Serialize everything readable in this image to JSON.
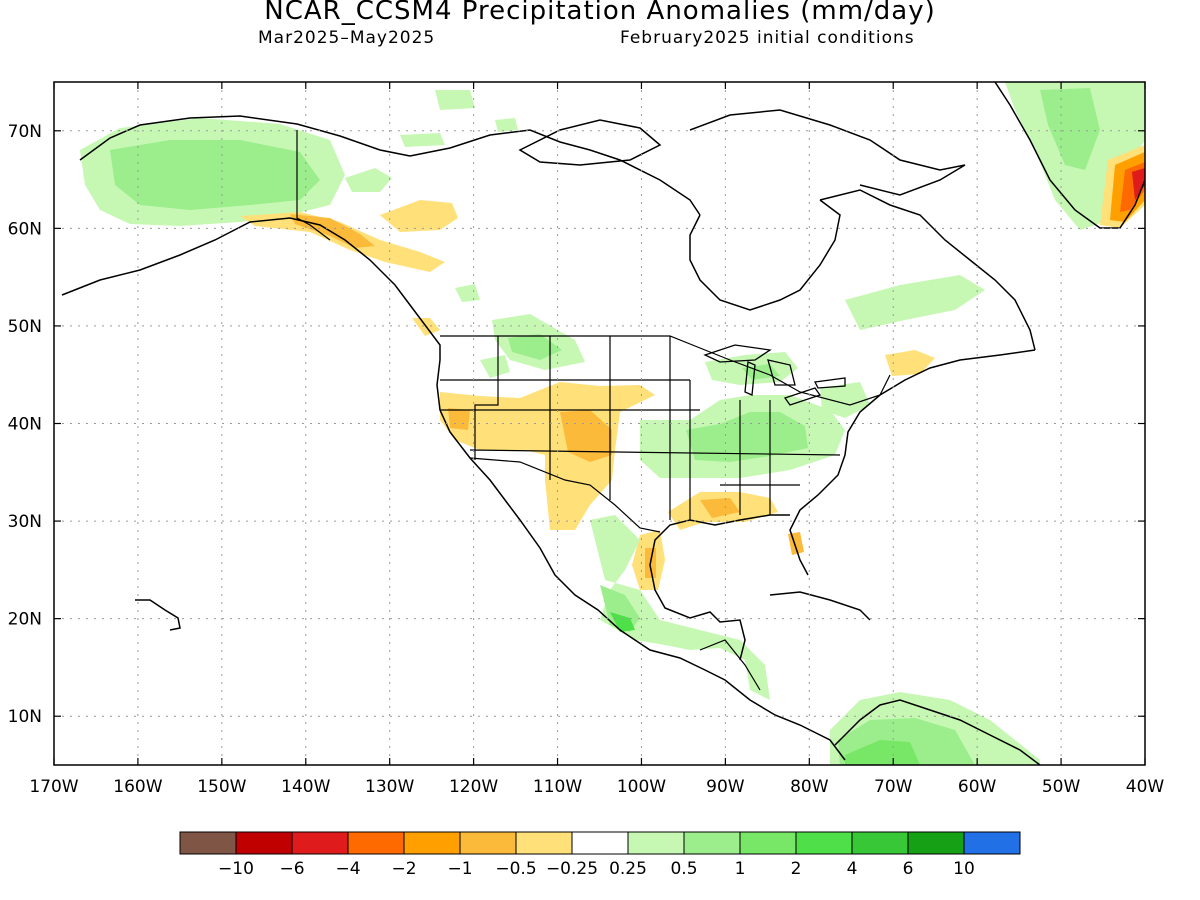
{
  "title": "NCAR_CCSM4 Precipitation Anomalies (mm/day)",
  "subtitle_left": "Mar2025–May2025",
  "subtitle_right": "February2025 initial conditions",
  "map": {
    "lon_range": [
      -170,
      -40
    ],
    "lat_range": [
      5,
      75
    ],
    "x_ticks": [
      "170W",
      "160W",
      "150W",
      "140W",
      "130W",
      "120W",
      "110W",
      "100W",
      "90W",
      "80W",
      "70W",
      "60W",
      "50W",
      "40W"
    ],
    "y_ticks": [
      "10N",
      "20N",
      "30N",
      "40N",
      "50N",
      "60N",
      "70N"
    ],
    "grid": true
  },
  "colorbar": {
    "colors": [
      "#7f5546",
      "#c00000",
      "#e01b1b",
      "#ff6a00",
      "#ff9f00",
      "#fbba3a",
      "#ffe079",
      "#ffffff",
      "#c6f8b4",
      "#9cee8c",
      "#78e667",
      "#4fdf49",
      "#37c737",
      "#16a016",
      "#2270e6"
    ],
    "labels": [
      "−10",
      "−6",
      "−4",
      "−2",
      "−1",
      "−0.5",
      "−0.25",
      "0.25",
      "0.5",
      "1",
      "2",
      "4",
      "6",
      "10"
    ]
  }
}
